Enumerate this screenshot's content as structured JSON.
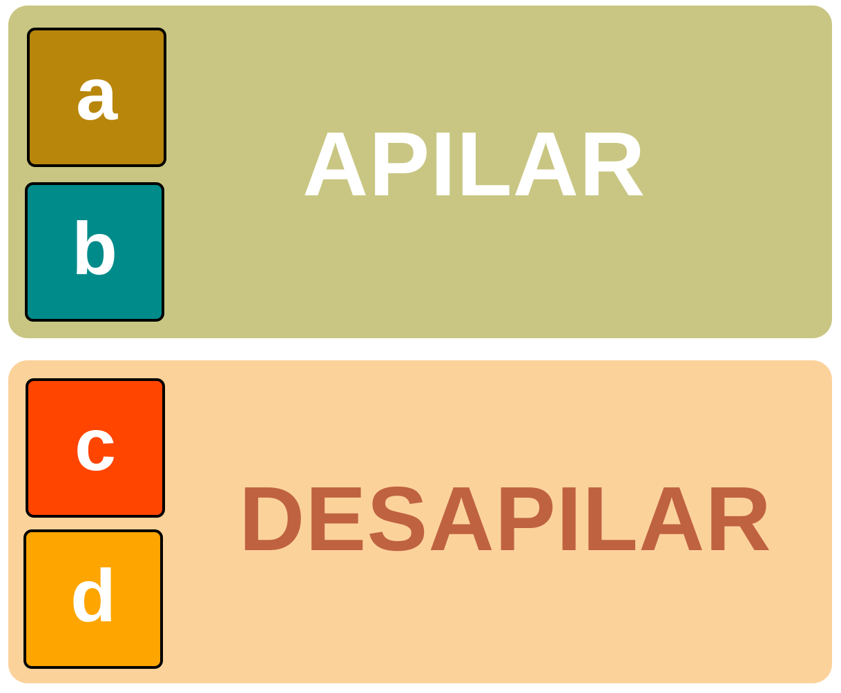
{
  "push_section": {
    "label": "APILAR",
    "blocks": [
      {
        "letter": "a",
        "color": "#b8860b"
      },
      {
        "letter": "b",
        "color": "#008b8b"
      }
    ],
    "background": "#c8c682",
    "label_color": "#ffffff"
  },
  "pop_section": {
    "label": "DESAPILAR",
    "blocks": [
      {
        "letter": "c",
        "color": "#ff4500"
      },
      {
        "letter": "d",
        "color": "#ffa500"
      }
    ],
    "background": "#fcd29b",
    "label_color": "#bf6240"
  }
}
